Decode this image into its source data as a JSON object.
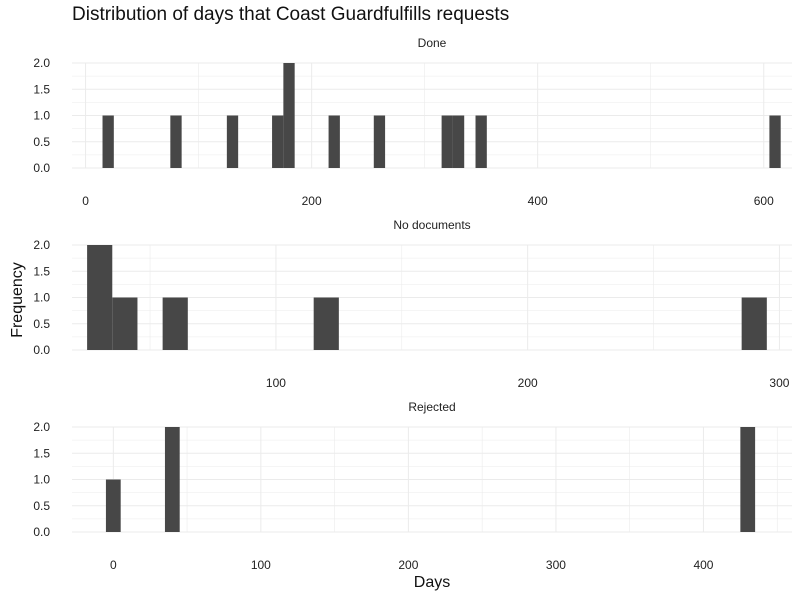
{
  "chart_data": {
    "type": "bar",
    "title": "Distribution of days that Coast Guardfulfills requests",
    "xlabel": "Days",
    "ylabel": "Frequency",
    "colors": {
      "bar": "#474747",
      "grid": "#ebebeb"
    },
    "panels": [
      {
        "name": "Done",
        "xlim": [
          -12,
          625
        ],
        "ylim": [
          0,
          2
        ],
        "x_ticks": [
          0,
          200,
          400,
          600
        ],
        "y_ticks": [
          0.0,
          0.5,
          1.0,
          1.5,
          2.0
        ],
        "bin_width": 10,
        "bins": [
          {
            "x": 20,
            "count": 1
          },
          {
            "x": 80,
            "count": 1
          },
          {
            "x": 130,
            "count": 1
          },
          {
            "x": 170,
            "count": 1
          },
          {
            "x": 180,
            "count": 2
          },
          {
            "x": 220,
            "count": 1
          },
          {
            "x": 260,
            "count": 1
          },
          {
            "x": 320,
            "count": 1
          },
          {
            "x": 330,
            "count": 1
          },
          {
            "x": 350,
            "count": 1
          },
          {
            "x": 610,
            "count": 1
          }
        ]
      },
      {
        "name": "No documents",
        "xlim": [
          19,
          305
        ],
        "ylim": [
          0,
          2
        ],
        "x_ticks": [
          100,
          200,
          300
        ],
        "y_ticks": [
          0.0,
          0.5,
          1.0,
          1.5,
          2.0
        ],
        "bin_width": 10,
        "bins": [
          {
            "x": 30,
            "count": 2
          },
          {
            "x": 40,
            "count": 1
          },
          {
            "x": 60,
            "count": 1
          },
          {
            "x": 120,
            "count": 1
          },
          {
            "x": 290,
            "count": 1
          }
        ]
      },
      {
        "name": "Rejected",
        "xlim": [
          -28,
          460
        ],
        "ylim": [
          0,
          2
        ],
        "x_ticks": [
          0,
          100,
          200,
          300,
          400
        ],
        "y_ticks": [
          0.0,
          0.5,
          1.0,
          1.5,
          2.0
        ],
        "bin_width": 10,
        "bins": [
          {
            "x": 0,
            "count": 1
          },
          {
            "x": 40,
            "count": 2
          },
          {
            "x": 430,
            "count": 2
          }
        ]
      }
    ]
  }
}
